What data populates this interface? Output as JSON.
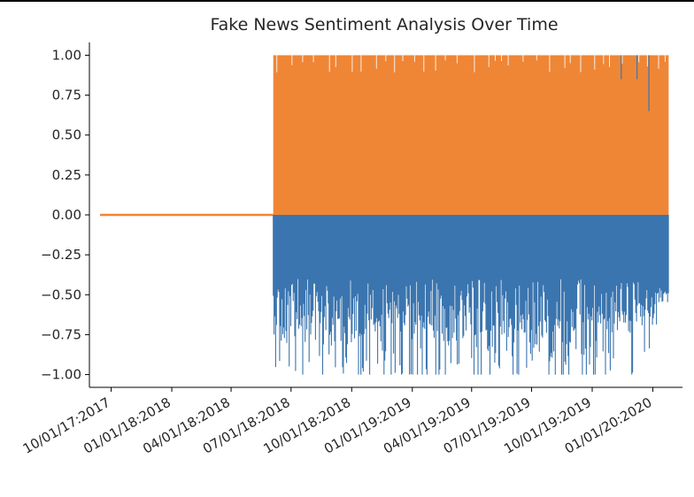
{
  "chart_data": {
    "type": "line",
    "title": "Fake News Sentiment Analysis Over Time",
    "xlabel": "",
    "ylabel": "",
    "ylim": [
      -1.08,
      1.08
    ],
    "xlim": [
      "2017-08-29",
      "2020-02-15"
    ],
    "y_ticks": [
      {
        "value": 1.0,
        "label": "1.00"
      },
      {
        "value": 0.75,
        "label": "0.75"
      },
      {
        "value": 0.5,
        "label": "0.50"
      },
      {
        "value": 0.25,
        "label": "0.25"
      },
      {
        "value": 0.0,
        "label": "0.00"
      },
      {
        "value": -0.25,
        "label": "−0.25"
      },
      {
        "value": -0.5,
        "label": "−0.50"
      },
      {
        "value": -0.75,
        "label": "−0.75"
      },
      {
        "value": -1.0,
        "label": "−1.00"
      }
    ],
    "x_ticks": [
      {
        "date": "2017-10-01",
        "label": "10/01/17:2017"
      },
      {
        "date": "2018-01-01",
        "label": "01/01/18:2018"
      },
      {
        "date": "2018-04-01",
        "label": "04/01/18:2018"
      },
      {
        "date": "2018-07-01",
        "label": "07/01/18:2018"
      },
      {
        "date": "2018-10-01",
        "label": "10/01/18:2018"
      },
      {
        "date": "2019-01-01",
        "label": "01/01/19:2019"
      },
      {
        "date": "2019-04-01",
        "label": "04/01/19:2019"
      },
      {
        "date": "2019-07-01",
        "label": "07/01/19:2019"
      },
      {
        "date": "2019-10-01",
        "label": "10/01/19:2019"
      },
      {
        "date": "2020-01-01",
        "label": "01/01/20:2020"
      }
    ],
    "grid": false,
    "legend": "none",
    "series": [
      {
        "color": "#3b75af",
        "description_values": "negative sentiment score per article, mostly between -1.00 and -0.40",
        "x": [
          "2017-09-14",
          "2018-06-01",
          "2018-06-04",
          "2018-06-15",
          "2018-07-01",
          "2018-07-15",
          "2018-08-01",
          "2018-08-15",
          "2018-09-01",
          "2018-09-15",
          "2018-10-01",
          "2018-10-15",
          "2018-11-01",
          "2018-11-15",
          "2018-12-01",
          "2018-12-15",
          "2019-01-01",
          "2019-01-15",
          "2019-02-01",
          "2019-02-15",
          "2019-03-01",
          "2019-03-15",
          "2019-04-01",
          "2019-04-15",
          "2019-05-01",
          "2019-05-15",
          "2019-06-01",
          "2019-06-15",
          "2019-07-01",
          "2019-07-15",
          "2019-08-01",
          "2019-08-15",
          "2019-09-01",
          "2019-09-15",
          "2019-10-01",
          "2019-10-15",
          "2019-11-01",
          "2019-11-15",
          "2019-12-01",
          "2019-12-15",
          "2020-01-01",
          "2020-01-25"
        ],
        "min": [
          0.0,
          0.0,
          -1.0,
          -1.0,
          -1.0,
          -1.0,
          -1.0,
          -1.0,
          -1.0,
          -1.0,
          -1.0,
          -1.0,
          -1.0,
          -1.0,
          -1.0,
          -1.0,
          -1.0,
          -1.0,
          -1.0,
          -1.0,
          -1.0,
          -1.0,
          -1.0,
          -1.0,
          -1.0,
          -1.0,
          -1.0,
          -1.0,
          -1.0,
          -1.0,
          -1.0,
          -0.9,
          -0.9,
          -0.9,
          -0.9,
          -0.9,
          -0.9,
          -0.9,
          -0.9,
          -0.9,
          -0.9,
          -0.55
        ]
      },
      {
        "color": "#ef8636",
        "description_values": "positive sentiment score per article, mostly between 0.00 and 1.00",
        "x": [
          "2017-09-14",
          "2018-06-01",
          "2018-06-04",
          "2020-01-25"
        ],
        "max": [
          0.0,
          0.0,
          1.0,
          1.0
        ]
      }
    ]
  }
}
